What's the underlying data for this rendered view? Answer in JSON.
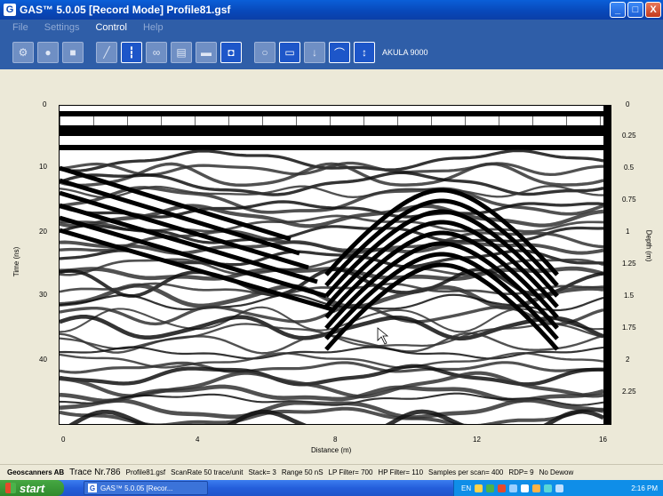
{
  "window": {
    "title": "GAS™ 5.0.05 [Record Mode]   Profile81.gsf",
    "app_icon": "G",
    "minimize": "_",
    "maximize": "□",
    "close": "X"
  },
  "menu": {
    "file": "File",
    "settings": "Settings",
    "control": "Control",
    "help": "Help"
  },
  "toolbar": {
    "device_label": "AKULA 9000",
    "buttons": [
      "settings-icon",
      "record-icon",
      "stop-icon",
      "pen-icon",
      "marker-icon",
      "link-icon",
      "save-icon",
      "display-icon",
      "camera-icon",
      "circle-icon",
      "blue-box-icon",
      "arrow-down-icon",
      "hyperbola-icon",
      "up-down-icon"
    ]
  },
  "radargram": {
    "y_left_label": "Time (ns)",
    "y_right_label": "Depth (m)",
    "x_label": "Distance (m)",
    "y_left_ticks": [
      "0",
      "10",
      "20",
      "30",
      "40"
    ],
    "y_right_ticks": [
      "0",
      "0.25",
      "0.5",
      "0.75",
      "1",
      "1.25",
      "1.5",
      "1.75",
      "2",
      "2.25"
    ],
    "x_ticks": [
      "0",
      "4",
      "8",
      "12",
      "16"
    ]
  },
  "status": {
    "brand": "Geoscanners AB",
    "trace": "Trace Nr.786",
    "file": "Profile81.gsf",
    "scanrate": "ScanRate 50 trace/unit",
    "stack": "Stack= 3",
    "range": "Range 50 nS",
    "lp": "LP Filter= 700",
    "hp": "HP Filter= 110",
    "samples": "Samples per scan= 400",
    "rdp": "RDP= 9",
    "dewow": "No Dewow"
  },
  "taskbar": {
    "start": "start",
    "task": "GAS™ 5.0.05 [Recor...",
    "lang": "EN",
    "clock": "2:16 PM"
  },
  "colors": {
    "title_bar": "#0847b8",
    "toolbar_bg": "#2f5ea8",
    "work_bg": "#ece9d8",
    "taskbar": "#245edb",
    "tray": "#0f8ee8"
  }
}
